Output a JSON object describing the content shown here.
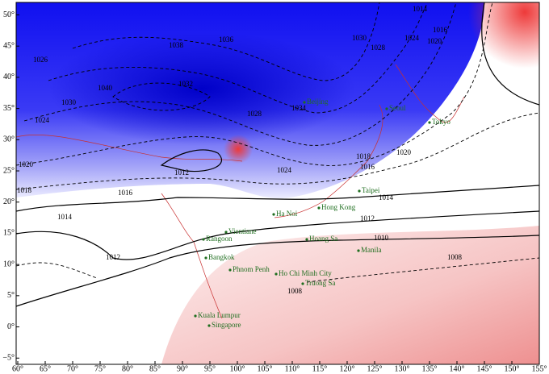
{
  "map": {
    "xlim": [
      60,
      155
    ],
    "ylim": [
      -6,
      52
    ],
    "xticks": [
      {
        "value": 60,
        "label": "60°"
      },
      {
        "value": 65,
        "label": "65°"
      },
      {
        "value": 70,
        "label": "70°"
      },
      {
        "value": 75,
        "label": "75°"
      },
      {
        "value": 80,
        "label": "80°"
      },
      {
        "value": 85,
        "label": "85°"
      },
      {
        "value": 90,
        "label": "90°"
      },
      {
        "value": 95,
        "label": "95°"
      },
      {
        "value": 100,
        "label": "100°"
      },
      {
        "value": 105,
        "label": "105°"
      },
      {
        "value": 110,
        "label": "110°"
      },
      {
        "value": 115,
        "label": "115°"
      },
      {
        "value": 120,
        "label": "120°"
      },
      {
        "value": 125,
        "label": "125°"
      },
      {
        "value": 130,
        "label": "130°"
      },
      {
        "value": 135,
        "label": "135°"
      },
      {
        "value": 140,
        "label": "140°"
      },
      {
        "value": 145,
        "label": "145°"
      },
      {
        "value": 150,
        "label": "150°"
      },
      {
        "value": 155,
        "label": "155°"
      }
    ],
    "yticks": [
      {
        "value": 50,
        "label": "50°"
      },
      {
        "value": 45,
        "label": "45°"
      },
      {
        "value": 40,
        "label": "40°"
      },
      {
        "value": 35,
        "label": "35°"
      },
      {
        "value": 30,
        "label": "30°"
      },
      {
        "value": 25,
        "label": "25°"
      },
      {
        "value": 20,
        "label": "20°"
      },
      {
        "value": 15,
        "label": "15°"
      },
      {
        "value": 10,
        "label": "10°"
      },
      {
        "value": 5,
        "label": "5°"
      },
      {
        "value": 0,
        "label": "0°"
      },
      {
        "value": -5,
        "label": "−5°"
      }
    ],
    "contour_labels": [
      "1014",
      "1016",
      "1020",
      "1024",
      "1028",
      "1030",
      "1036",
      "1038",
      "1040",
      "1030",
      "1026",
      "1024",
      "1020",
      "1018",
      "1016",
      "1014",
      "1012",
      "1012",
      "1010",
      "1008",
      "1008",
      "1014",
      "1016",
      "1018",
      "1012",
      "1032",
      "1034",
      "1028",
      "1024",
      "1020"
    ],
    "cities": [
      "Beijing",
      "Seoul",
      "Tokyo",
      "Taipei",
      "Hong Kong",
      "Ha Noi",
      "Hoang Sa",
      "Vientiane",
      "Rangoon",
      "Bangkok",
      "Phnom Penh",
      "Manila",
      "Ho Chi Minh City",
      "Truong Sa",
      "Kuala Lumpur",
      "Singapore"
    ]
  }
}
